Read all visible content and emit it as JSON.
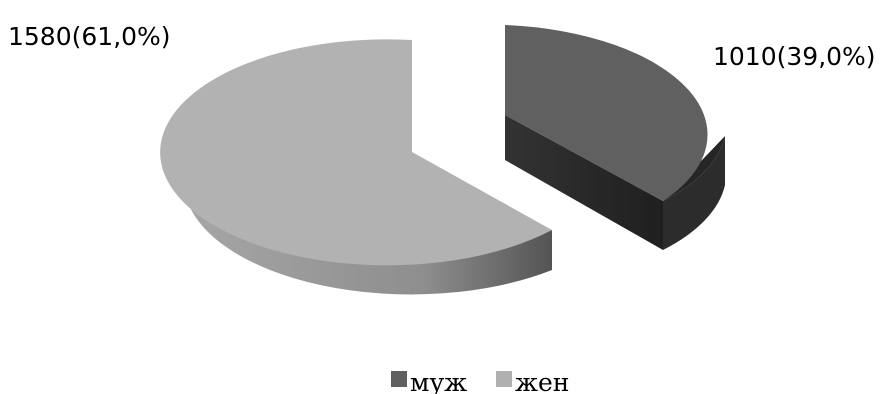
{
  "chart_data": {
    "type": "pie",
    "style": "3d-exploded",
    "title": "",
    "slices": [
      {
        "name": "муж",
        "value": 1010,
        "percent": 39.0,
        "label": "1010(39,0%)",
        "color": "#606060",
        "side_color": "#2a2a2a"
      },
      {
        "name": "жен",
        "value": 1580,
        "percent": 61.0,
        "label": "1580(61,0%)",
        "color": "#b0b0b0",
        "side_color": "#8c8c8c"
      }
    ],
    "legend": {
      "position": "bottom",
      "entries": [
        "муж",
        "жен"
      ]
    }
  }
}
